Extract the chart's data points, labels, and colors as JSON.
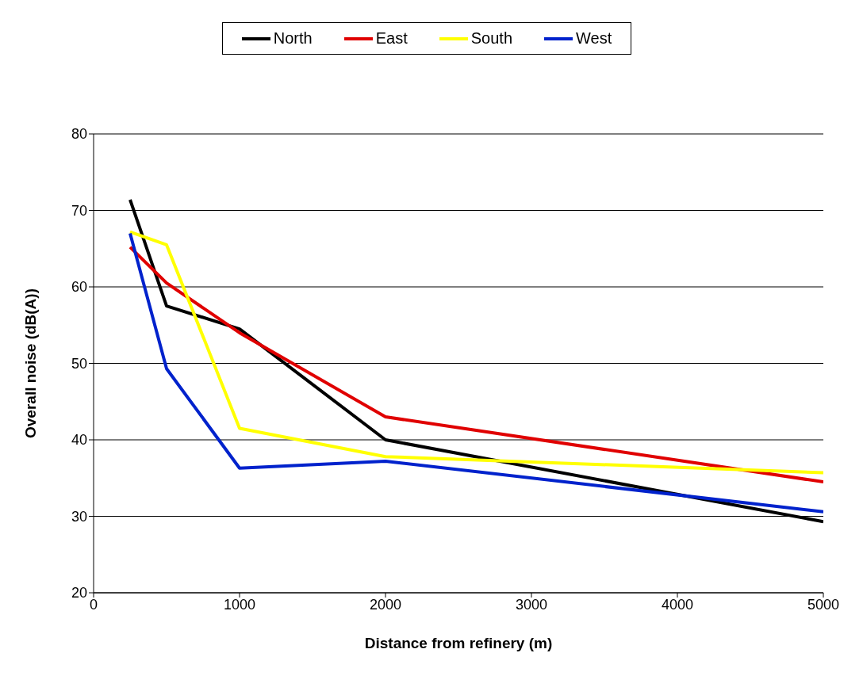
{
  "chart_data": {
    "type": "line",
    "xlabel": "Distance from refinery (m)",
    "ylabel": "Overall noise (dB(A))",
    "x": [
      250,
      500,
      1000,
      2000,
      5000
    ],
    "series": [
      {
        "name": "North",
        "color": "#000000",
        "values": [
          71.4,
          57.5,
          54.5,
          40,
          29.3
        ]
      },
      {
        "name": "East",
        "color": "#e00000",
        "values": [
          65.2,
          60.5,
          54,
          43,
          34.5
        ]
      },
      {
        "name": "South",
        "color": "#ffff00",
        "values": [
          67.2,
          65.5,
          41.5,
          37.8,
          35.7
        ]
      },
      {
        "name": "West",
        "color": "#0022cc",
        "values": [
          67,
          49.3,
          36.3,
          37.2,
          30.6
        ]
      }
    ],
    "xlim": [
      0,
      5000
    ],
    "xticks": [
      0,
      1000,
      2000,
      3000,
      4000,
      5000
    ],
    "ylim": [
      20,
      80
    ],
    "yticks": [
      20,
      30,
      40,
      50,
      60,
      70,
      80
    ],
    "grid": "y",
    "legend": "top",
    "marker": "none",
    "line_style": "solid"
  }
}
